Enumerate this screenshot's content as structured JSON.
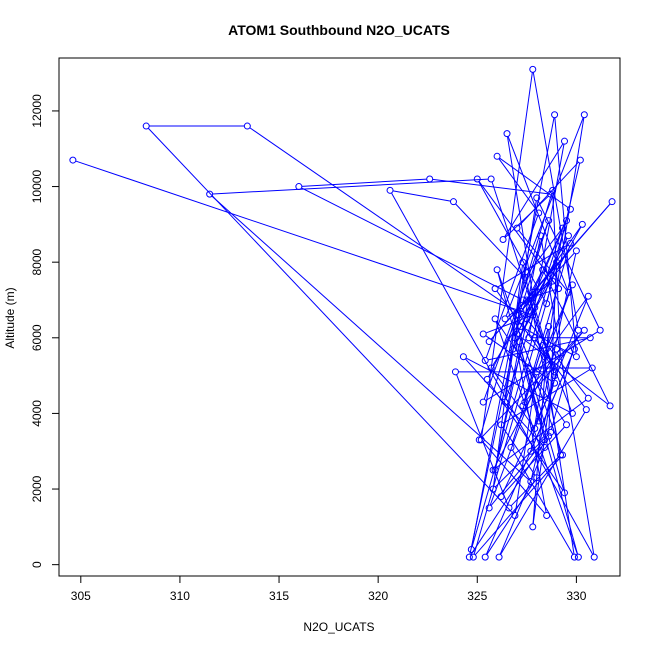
{
  "chart_data": {
    "type": "line",
    "title": "ATOM1 Southbound N2O_UCATS",
    "xlabel": "N2O_UCATS",
    "ylabel": "Altitude (m)",
    "xlim": [
      303.9,
      332.2
    ],
    "ylim": [
      -300,
      13400
    ],
    "x_ticks": [
      305,
      310,
      315,
      320,
      325,
      330
    ],
    "y_ticks": [
      0,
      2000,
      4000,
      6000,
      8000,
      10000,
      12000
    ],
    "grid": false,
    "legend": "none",
    "series": [
      {
        "color": "#0000ff",
        "marker": "open-circle",
        "x": [
          304.6,
          327.8,
          325.3,
          328.9,
          326.2,
          329.5,
          325.9,
          330.1,
          327.1,
          328.4,
          325.6,
          329.8,
          328.0,
          326.9,
          308.3,
          313.4,
          327.5,
          330.6,
          325.8,
          329.0,
          327.8,
          328.6,
          326.7,
          329.9,
          328.3,
          327.4,
          330.4,
          325.1,
          328.8,
          329.2,
          327.7,
          311.5,
          325.7,
          328.9,
          327.9,
          326.5,
          329.6,
          327.0,
          330.2,
          328.5,
          325.0,
          329.1,
          327.3,
          316.0,
          322.6,
          328.7,
          326.3,
          329.4,
          327.6,
          330.7,
          325.4,
          328.1,
          326.0,
          329.7,
          327.2,
          330.0,
          328.9,
          324.7,
          329.5,
          327.8,
          325.9,
          328.2,
          330.9,
          320.6,
          323.8,
          327.4,
          329.3,
          326.4,
          328.0,
          331.2,
          325.3,
          328.6,
          327.1,
          330.3,
          326.8,
          329.0,
          325.6,
          331.8,
          327.5,
          329.8,
          324.3,
          328.4,
          326.1,
          330.5,
          327.9,
          328.9,
          323.9,
          326.6,
          329.2,
          327.3,
          325.8,
          328.7,
          330.1,
          327.8,
          325.2,
          328.5,
          326.9,
          329.6,
          327.0,
          331.7,
          328.3,
          325.5,
          329.4,
          327.6,
          330.8,
          326.2,
          328.0,
          325.4,
          329.9,
          327.7,
          330.4,
          326.4,
          328.8,
          324.8,
          329.3,
          326.0,
          328.1,
          330.0,
          327.2,
          324.6,
          328.6,
          329.0,
          325.7,
          327.9,
          330.6,
          328.4,
          325.9,
          329.7,
          327.3
        ],
        "y": [
          10700,
          6600,
          6100,
          4800,
          1800,
          3700,
          6500,
          200,
          5900,
          3300,
          1500,
          7400,
          5100,
          1300,
          11600,
          11600,
          6500,
          4400,
          2500,
          5700,
          1000,
          6300,
          3100,
          200,
          5800,
          4300,
          6200,
          3300,
          9900,
          5600,
          2200,
          9800,
          10200,
          5000,
          6800,
          11400,
          7200,
          8900,
          10700,
          6900,
          10200,
          7300,
          7000,
          10000,
          10200,
          9800,
          8600,
          11200,
          6000,
          6000,
          5400,
          9300,
          10800,
          9400,
          6300,
          5500,
          11900,
          400,
          9100,
          7200,
          2500,
          8700,
          200,
          9900,
          9600,
          7600,
          8900,
          4300,
          9700,
          6200,
          4300,
          9100,
          6600,
          9000,
          5700,
          7900,
          5900,
          9600,
          7000,
          4000,
          5500,
          3100,
          200,
          4100,
          6000,
          5100,
          5100,
          1500,
          2900,
          8000,
          2000,
          3500,
          6200,
          13100,
          3300,
          1300,
          6000,
          8700,
          6100,
          4200,
          7800,
          4900,
          1900,
          5200,
          5200,
          3700,
          2300,
          200,
          5700,
          3000,
          11900,
          6500,
          7500,
          200,
          2900,
          7800,
          3800,
          8300,
          6700,
          200,
          3400,
          8000,
          5200,
          3600,
          7100,
          5500,
          7300,
          8500,
          4200
        ]
      }
    ]
  }
}
